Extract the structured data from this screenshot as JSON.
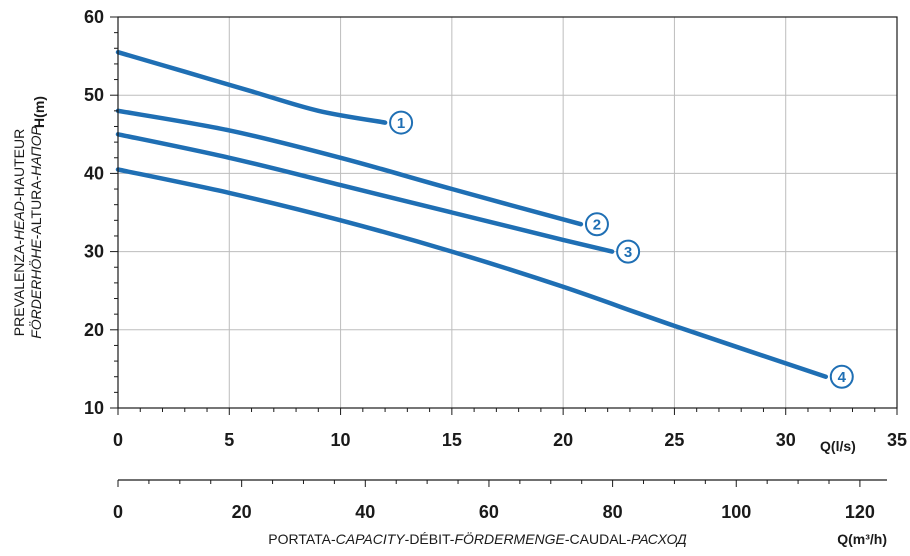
{
  "chart_data": {
    "type": "line",
    "x_axis_primary": {
      "unit_label": "Q(l/s)",
      "range": [
        0,
        35
      ],
      "ticks": [
        "0",
        "5",
        "10",
        "15",
        "20",
        "25",
        "30",
        "35"
      ]
    },
    "x_axis_secondary": {
      "unit_label": "Q(m³/h)",
      "range": [
        0,
        126
      ],
      "ticks": [
        "0",
        "20",
        "40",
        "60",
        "80",
        "100",
        "120"
      ]
    },
    "y_axis": {
      "unit_label": "H(m)",
      "range": [
        10,
        60
      ],
      "ticks": [
        "10",
        "20",
        "30",
        "40",
        "50",
        "60"
      ]
    },
    "xlabel": {
      "parts": [
        {
          "text": "PORTATA-",
          "italic": false
        },
        {
          "text": "CAPACITY",
          "italic": true
        },
        {
          "text": "-DÉBIT-",
          "italic": false
        },
        {
          "text": "FÖRDERMENGE",
          "italic": true
        },
        {
          "text": "-CAUDAL-",
          "italic": false
        },
        {
          "text": "РАСХОД",
          "italic": true
        }
      ]
    },
    "ylabel": {
      "line1": [
        {
          "text": "PREVALENZA-",
          "italic": false
        },
        {
          "text": "HEAD",
          "italic": true
        },
        {
          "text": "-HAUTEUR",
          "italic": false
        }
      ],
      "line2": [
        {
          "text": "FÖRDERHÖHE",
          "italic": true
        },
        {
          "text": "-ALTURA-",
          "italic": false
        },
        {
          "text": "НАПОР",
          "italic": true
        }
      ]
    },
    "grid": true,
    "line_color": "#1f6fb4",
    "series": [
      {
        "label": "1",
        "x": [
          0,
          3,
          6,
          9,
          12
        ],
        "y": [
          55.5,
          53.0,
          50.5,
          48.0,
          46.5
        ]
      },
      {
        "label": "2",
        "x": [
          0,
          5,
          10,
          15,
          20.8
        ],
        "y": [
          48.0,
          45.5,
          42.0,
          38.0,
          33.5
        ]
      },
      {
        "label": "3",
        "x": [
          0,
          5,
          10,
          15,
          20,
          22.2
        ],
        "y": [
          45.0,
          42.0,
          38.5,
          35.0,
          31.5,
          30.0
        ]
      },
      {
        "label": "4",
        "x": [
          0,
          5,
          10,
          15,
          20,
          25,
          31.8
        ],
        "y": [
          40.5,
          37.5,
          34.0,
          30.0,
          25.5,
          20.5,
          14.0
        ]
      }
    ]
  }
}
